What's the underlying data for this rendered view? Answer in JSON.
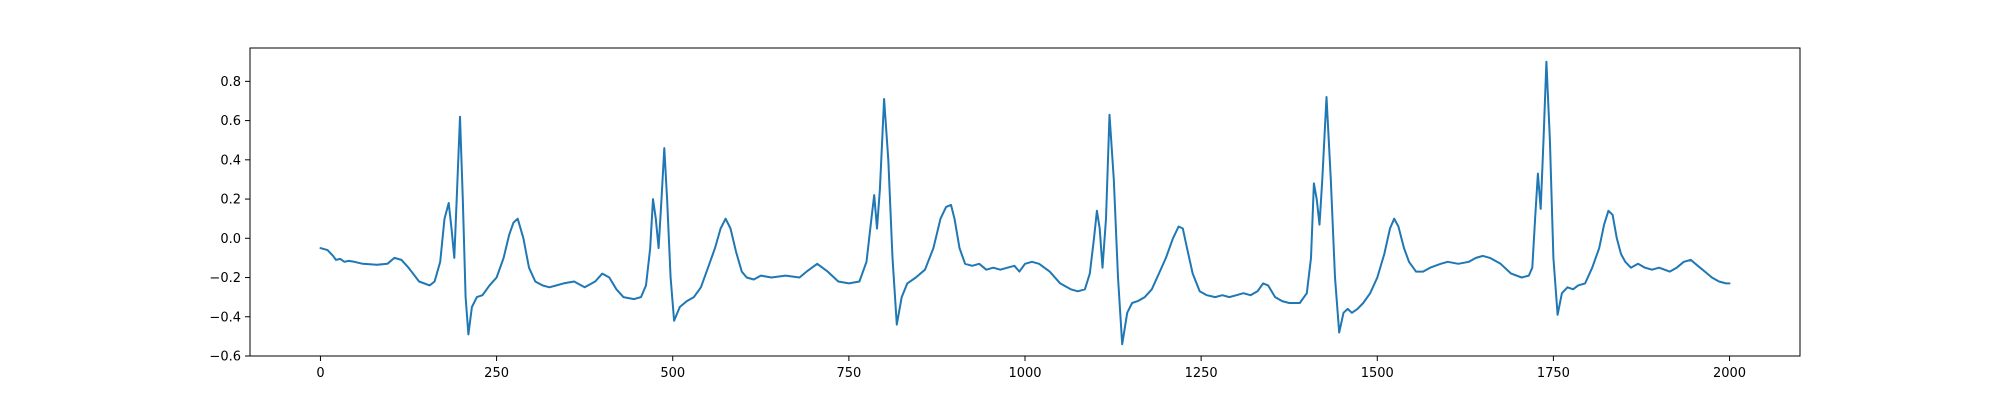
{
  "chart_data": {
    "type": "line",
    "title": "",
    "xlabel": "",
    "ylabel": "",
    "xlim": [
      -100,
      2100
    ],
    "ylim": [
      -0.6,
      0.97
    ],
    "xticks": [
      0,
      250,
      500,
      750,
      1000,
      1250,
      1500,
      1750,
      2000
    ],
    "xtick_labels": [
      "0",
      "250",
      "500",
      "750",
      "1000",
      "1250",
      "1500",
      "1750",
      "2000"
    ],
    "yticks": [
      -0.6,
      -0.4,
      -0.2,
      0.0,
      0.2,
      0.4,
      0.6,
      0.8
    ],
    "ytick_labels": [
      "−0.6",
      "−0.4",
      "−0.2",
      "0.0",
      "0.2",
      "0.4",
      "0.6",
      "0.8"
    ],
    "grid": false,
    "legend": "none",
    "series": [
      {
        "color": "#1f77b4",
        "points": [
          [
            0,
            -0.05
          ],
          [
            10,
            -0.06
          ],
          [
            18,
            -0.09
          ],
          [
            22,
            -0.11
          ],
          [
            28,
            -0.105
          ],
          [
            34,
            -0.12
          ],
          [
            40,
            -0.115
          ],
          [
            48,
            -0.12
          ],
          [
            60,
            -0.13
          ],
          [
            80,
            -0.135
          ],
          [
            95,
            -0.13
          ],
          [
            105,
            -0.1
          ],
          [
            115,
            -0.11
          ],
          [
            125,
            -0.15
          ],
          [
            140,
            -0.22
          ],
          [
            155,
            -0.24
          ],
          [
            162,
            -0.22
          ],
          [
            170,
            -0.12
          ],
          [
            176,
            0.1
          ],
          [
            182,
            0.18
          ],
          [
            186,
            0.05
          ],
          [
            190,
            -0.1
          ],
          [
            194,
            0.25
          ],
          [
            198,
            0.62
          ],
          [
            202,
            0.2
          ],
          [
            206,
            -0.3
          ],
          [
            210,
            -0.49
          ],
          [
            215,
            -0.35
          ],
          [
            222,
            -0.3
          ],
          [
            230,
            -0.29
          ],
          [
            240,
            -0.24
          ],
          [
            250,
            -0.2
          ],
          [
            260,
            -0.1
          ],
          [
            268,
            0.02
          ],
          [
            274,
            0.08
          ],
          [
            280,
            0.1
          ],
          [
            288,
            0.0
          ],
          [
            296,
            -0.15
          ],
          [
            305,
            -0.22
          ],
          [
            315,
            -0.24
          ],
          [
            325,
            -0.25
          ],
          [
            335,
            -0.24
          ],
          [
            345,
            -0.23
          ],
          [
            360,
            -0.22
          ],
          [
            375,
            -0.25
          ],
          [
            390,
            -0.22
          ],
          [
            400,
            -0.18
          ],
          [
            410,
            -0.2
          ],
          [
            420,
            -0.26
          ],
          [
            430,
            -0.3
          ],
          [
            445,
            -0.31
          ],
          [
            455,
            -0.3
          ],
          [
            462,
            -0.24
          ],
          [
            468,
            -0.05
          ],
          [
            472,
            0.2
          ],
          [
            476,
            0.1
          ],
          [
            480,
            -0.05
          ],
          [
            484,
            0.2
          ],
          [
            488,
            0.46
          ],
          [
            492,
            0.2
          ],
          [
            497,
            -0.2
          ],
          [
            502,
            -0.42
          ],
          [
            510,
            -0.35
          ],
          [
            520,
            -0.32
          ],
          [
            530,
            -0.3
          ],
          [
            540,
            -0.25
          ],
          [
            550,
            -0.15
          ],
          [
            560,
            -0.05
          ],
          [
            568,
            0.05
          ],
          [
            575,
            0.1
          ],
          [
            582,
            0.05
          ],
          [
            590,
            -0.07
          ],
          [
            598,
            -0.17
          ],
          [
            605,
            -0.2
          ],
          [
            615,
            -0.21
          ],
          [
            625,
            -0.19
          ],
          [
            640,
            -0.2
          ],
          [
            660,
            -0.19
          ],
          [
            680,
            -0.2
          ],
          [
            690,
            -0.17
          ],
          [
            705,
            -0.13
          ],
          [
            720,
            -0.17
          ],
          [
            735,
            -0.22
          ],
          [
            750,
            -0.23
          ],
          [
            765,
            -0.22
          ],
          [
            775,
            -0.12
          ],
          [
            782,
            0.1
          ],
          [
            786,
            0.22
          ],
          [
            790,
            0.05
          ],
          [
            794,
            0.25
          ],
          [
            800,
            0.71
          ],
          [
            806,
            0.4
          ],
          [
            812,
            -0.1
          ],
          [
            818,
            -0.44
          ],
          [
            825,
            -0.3
          ],
          [
            833,
            -0.23
          ],
          [
            845,
            -0.2
          ],
          [
            858,
            -0.16
          ],
          [
            870,
            -0.05
          ],
          [
            880,
            0.1
          ],
          [
            888,
            0.16
          ],
          [
            895,
            0.17
          ],
          [
            900,
            0.1
          ],
          [
            907,
            -0.05
          ],
          [
            915,
            -0.13
          ],
          [
            925,
            -0.14
          ],
          [
            935,
            -0.13
          ],
          [
            945,
            -0.16
          ],
          [
            955,
            -0.15
          ],
          [
            965,
            -0.16
          ],
          [
            975,
            -0.15
          ],
          [
            985,
            -0.14
          ],
          [
            992,
            -0.17
          ],
          [
            1000,
            -0.13
          ],
          [
            1010,
            -0.12
          ],
          [
            1020,
            -0.13
          ],
          [
            1035,
            -0.17
          ],
          [
            1050,
            -0.23
          ],
          [
            1065,
            -0.26
          ],
          [
            1075,
            -0.27
          ],
          [
            1085,
            -0.26
          ],
          [
            1092,
            -0.18
          ],
          [
            1098,
            0.0
          ],
          [
            1102,
            0.14
          ],
          [
            1106,
            0.05
          ],
          [
            1110,
            -0.15
          ],
          [
            1115,
            0.1
          ],
          [
            1120,
            0.63
          ],
          [
            1126,
            0.3
          ],
          [
            1132,
            -0.2
          ],
          [
            1138,
            -0.54
          ],
          [
            1145,
            -0.38
          ],
          [
            1152,
            -0.33
          ],
          [
            1160,
            -0.32
          ],
          [
            1170,
            -0.3
          ],
          [
            1180,
            -0.26
          ],
          [
            1190,
            -0.18
          ],
          [
            1200,
            -0.1
          ],
          [
            1210,
            0.0
          ],
          [
            1218,
            0.06
          ],
          [
            1224,
            0.05
          ],
          [
            1230,
            -0.05
          ],
          [
            1238,
            -0.18
          ],
          [
            1248,
            -0.27
          ],
          [
            1258,
            -0.29
          ],
          [
            1270,
            -0.3
          ],
          [
            1280,
            -0.29
          ],
          [
            1290,
            -0.3
          ],
          [
            1300,
            -0.29
          ],
          [
            1310,
            -0.28
          ],
          [
            1320,
            -0.29
          ],
          [
            1330,
            -0.27
          ],
          [
            1338,
            -0.23
          ],
          [
            1345,
            -0.24
          ],
          [
            1355,
            -0.3
          ],
          [
            1365,
            -0.32
          ],
          [
            1375,
            -0.33
          ],
          [
            1390,
            -0.33
          ],
          [
            1400,
            -0.28
          ],
          [
            1406,
            -0.1
          ],
          [
            1410,
            0.28
          ],
          [
            1414,
            0.2
          ],
          [
            1418,
            0.07
          ],
          [
            1422,
            0.3
          ],
          [
            1428,
            0.72
          ],
          [
            1434,
            0.3
          ],
          [
            1440,
            -0.2
          ],
          [
            1446,
            -0.48
          ],
          [
            1452,
            -0.38
          ],
          [
            1458,
            -0.36
          ],
          [
            1464,
            -0.38
          ],
          [
            1472,
            -0.36
          ],
          [
            1480,
            -0.33
          ],
          [
            1490,
            -0.28
          ],
          [
            1500,
            -0.2
          ],
          [
            1510,
            -0.08
          ],
          [
            1518,
            0.05
          ],
          [
            1524,
            0.1
          ],
          [
            1530,
            0.06
          ],
          [
            1538,
            -0.05
          ],
          [
            1545,
            -0.12
          ],
          [
            1555,
            -0.17
          ],
          [
            1565,
            -0.17
          ],
          [
            1575,
            -0.15
          ],
          [
            1590,
            -0.13
          ],
          [
            1600,
            -0.12
          ],
          [
            1615,
            -0.13
          ],
          [
            1630,
            -0.12
          ],
          [
            1640,
            -0.1
          ],
          [
            1650,
            -0.09
          ],
          [
            1660,
            -0.1
          ],
          [
            1675,
            -0.13
          ],
          [
            1690,
            -0.18
          ],
          [
            1705,
            -0.2
          ],
          [
            1715,
            -0.19
          ],
          [
            1720,
            -0.15
          ],
          [
            1724,
            0.1
          ],
          [
            1728,
            0.33
          ],
          [
            1732,
            0.15
          ],
          [
            1736,
            0.5
          ],
          [
            1740,
            0.9
          ],
          [
            1745,
            0.5
          ],
          [
            1750,
            -0.1
          ],
          [
            1756,
            -0.39
          ],
          [
            1762,
            -0.28
          ],
          [
            1770,
            -0.25
          ],
          [
            1778,
            -0.26
          ],
          [
            1785,
            -0.24
          ],
          [
            1795,
            -0.23
          ],
          [
            1805,
            -0.15
          ],
          [
            1815,
            -0.05
          ],
          [
            1822,
            0.07
          ],
          [
            1828,
            0.14
          ],
          [
            1834,
            0.12
          ],
          [
            1840,
            0.0
          ],
          [
            1846,
            -0.08
          ],
          [
            1852,
            -0.12
          ],
          [
            1860,
            -0.15
          ],
          [
            1870,
            -0.13
          ],
          [
            1880,
            -0.15
          ],
          [
            1890,
            -0.16
          ],
          [
            1900,
            -0.15
          ],
          [
            1915,
            -0.17
          ],
          [
            1925,
            -0.15
          ],
          [
            1935,
            -0.12
          ],
          [
            1945,
            -0.11
          ],
          [
            1955,
            -0.14
          ],
          [
            1965,
            -0.17
          ],
          [
            1975,
            -0.2
          ],
          [
            1985,
            -0.22
          ],
          [
            1995,
            -0.23
          ],
          [
            2000,
            -0.23
          ]
        ]
      }
    ]
  }
}
